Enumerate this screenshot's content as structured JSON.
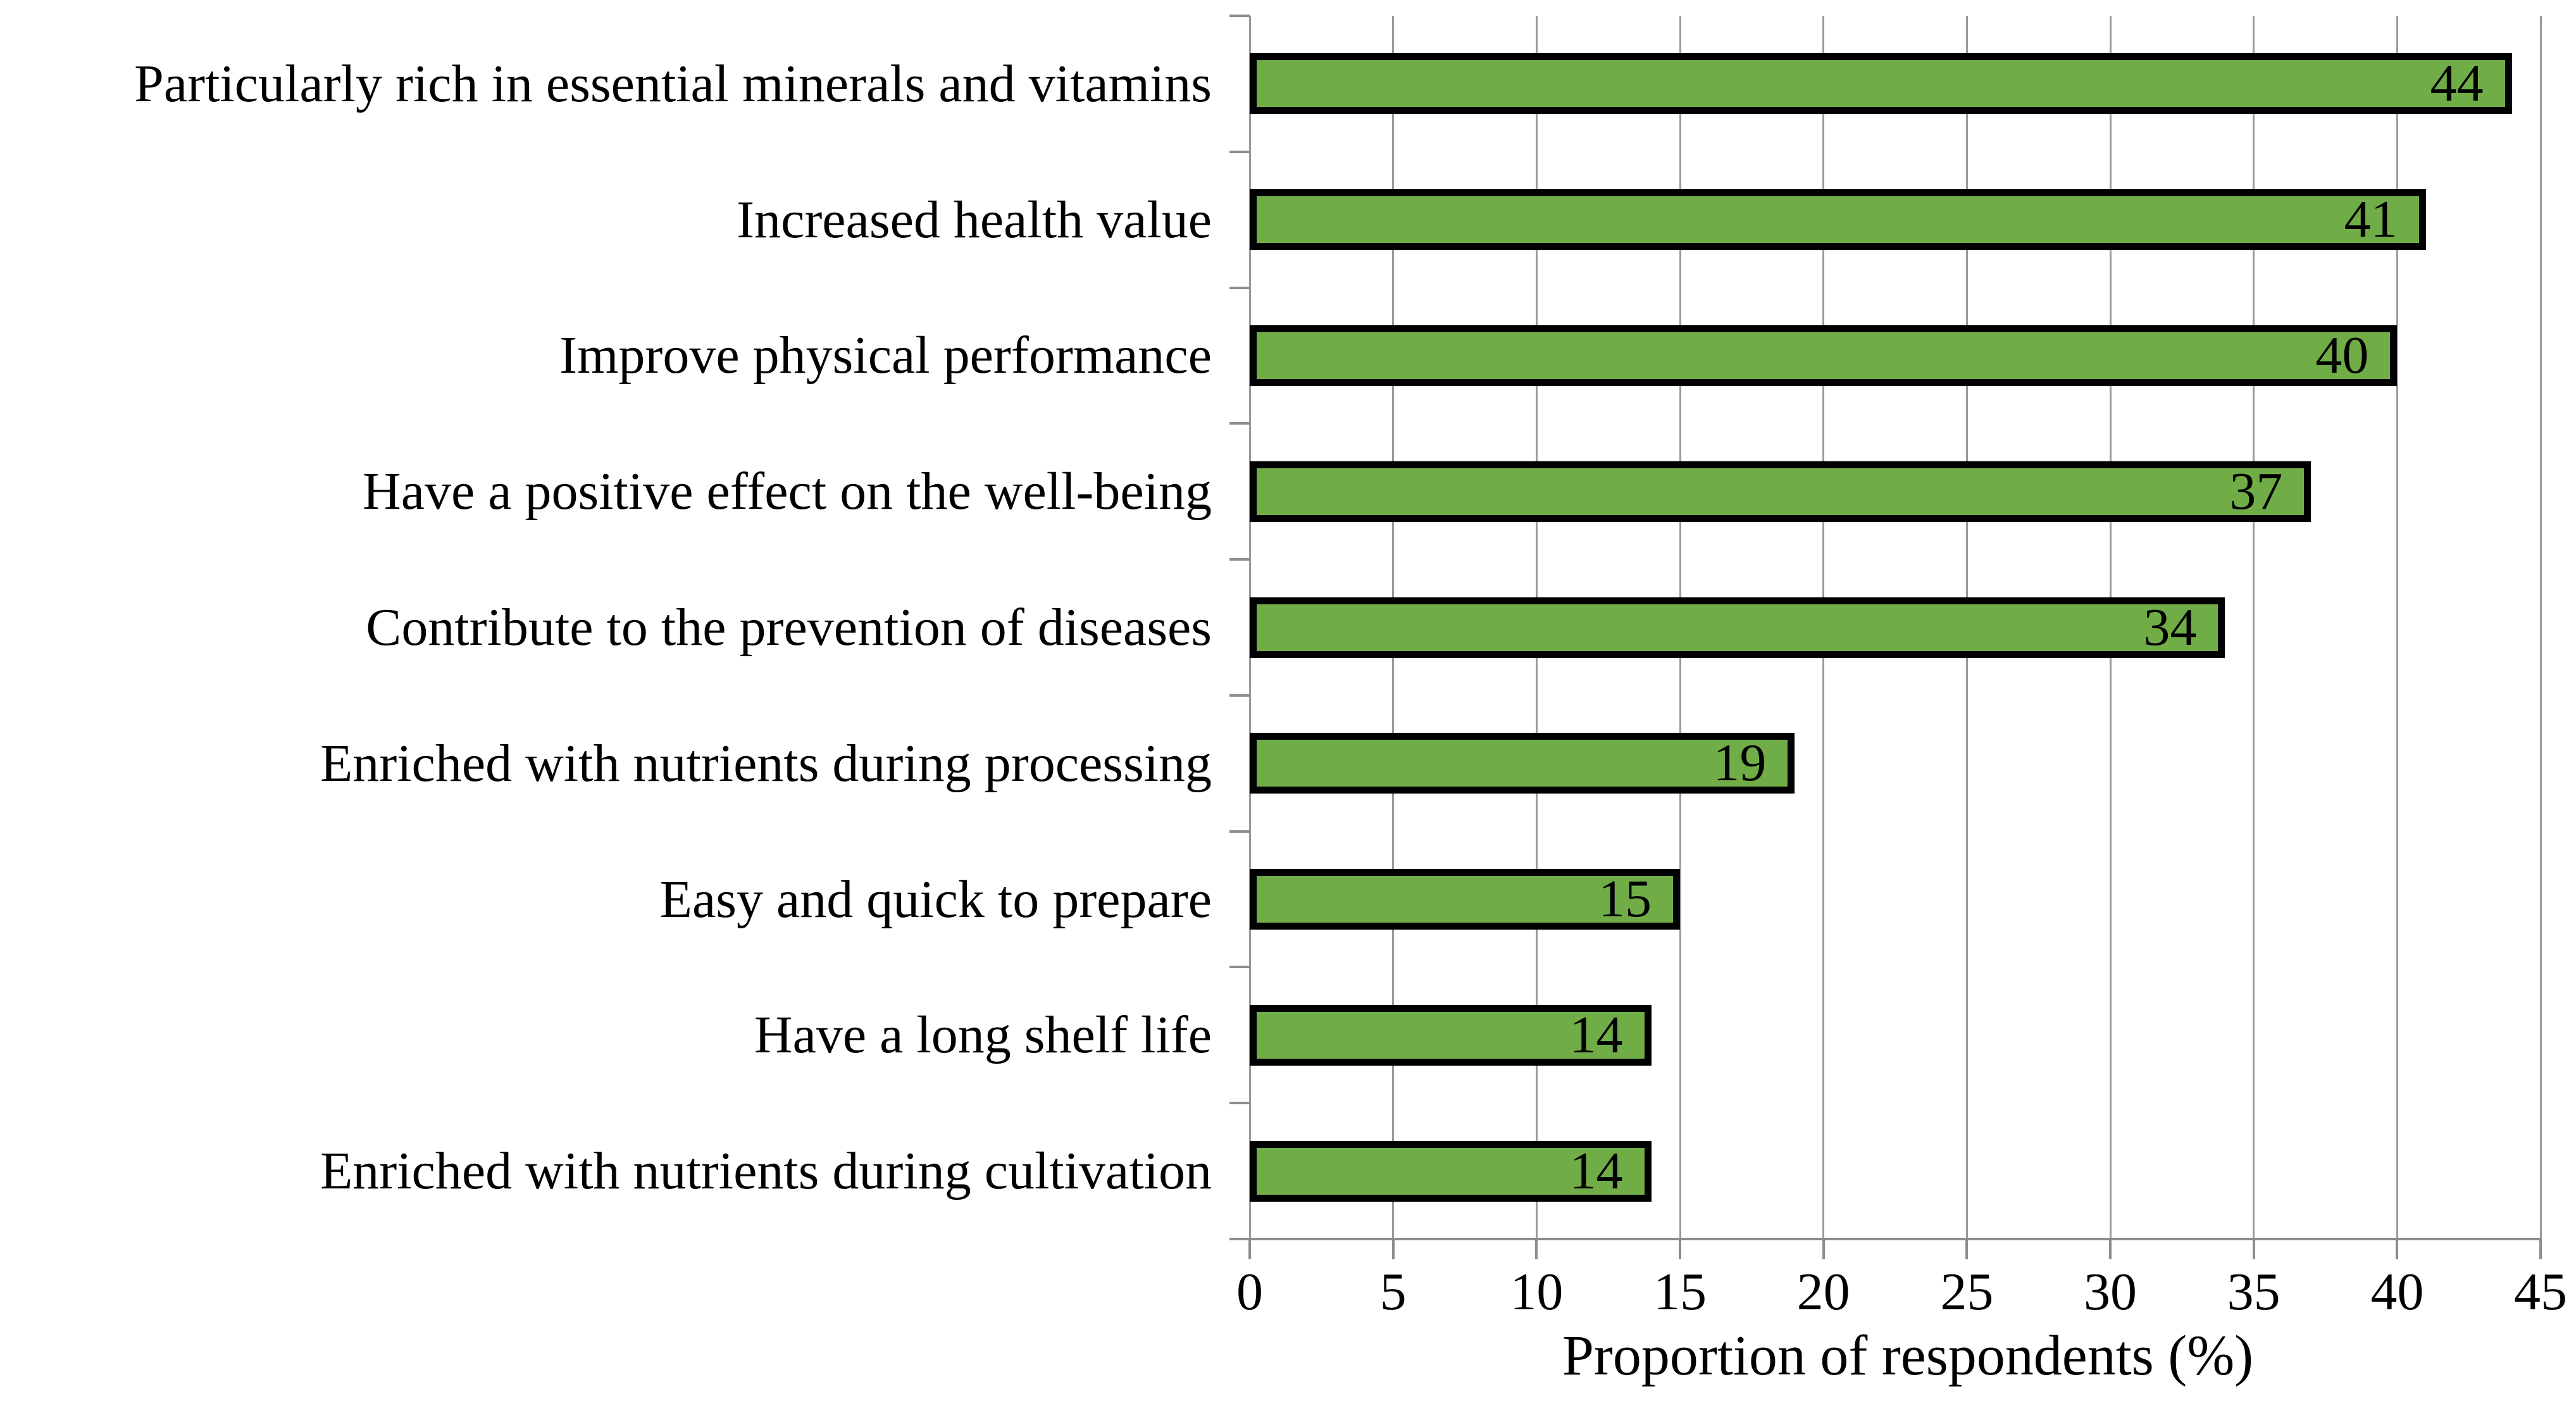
{
  "chart_data": {
    "type": "bar",
    "orientation": "horizontal",
    "title": "",
    "xlabel": "Proportion of respondents (%)",
    "ylabel": "",
    "categories": [
      "Particularly rich in essential minerals and vitamins",
      "Increased health value",
      "Improve physical performance",
      "Have a positive effect on the well-being",
      "Contribute to the prevention of diseases",
      "Enriched with nutrients during processing",
      "Easy and quick to prepare",
      "Have a long shelf life",
      "Enriched with nutrients during cultivation"
    ],
    "values": [
      44,
      41,
      40,
      37,
      34,
      19,
      15,
      14,
      14
    ],
    "value_labels": [
      "44",
      "41",
      "40",
      "37",
      "34",
      "19",
      "15",
      "14",
      "14"
    ],
    "xlim": [
      0,
      45
    ],
    "x_ticks": [
      "0",
      "5",
      "10",
      "15",
      "20",
      "25",
      "30",
      "35",
      "40",
      "45"
    ],
    "grid": "vertical-major",
    "legend": "none",
    "value_labels_position": "inside-end",
    "colors": {
      "bar_fill": "#70AD47",
      "bar_border": "#000000",
      "gridline": "#9A9A9A",
      "axis": "#8C8C8C",
      "text": "#000000",
      "background": "#FFFFFF"
    }
  }
}
